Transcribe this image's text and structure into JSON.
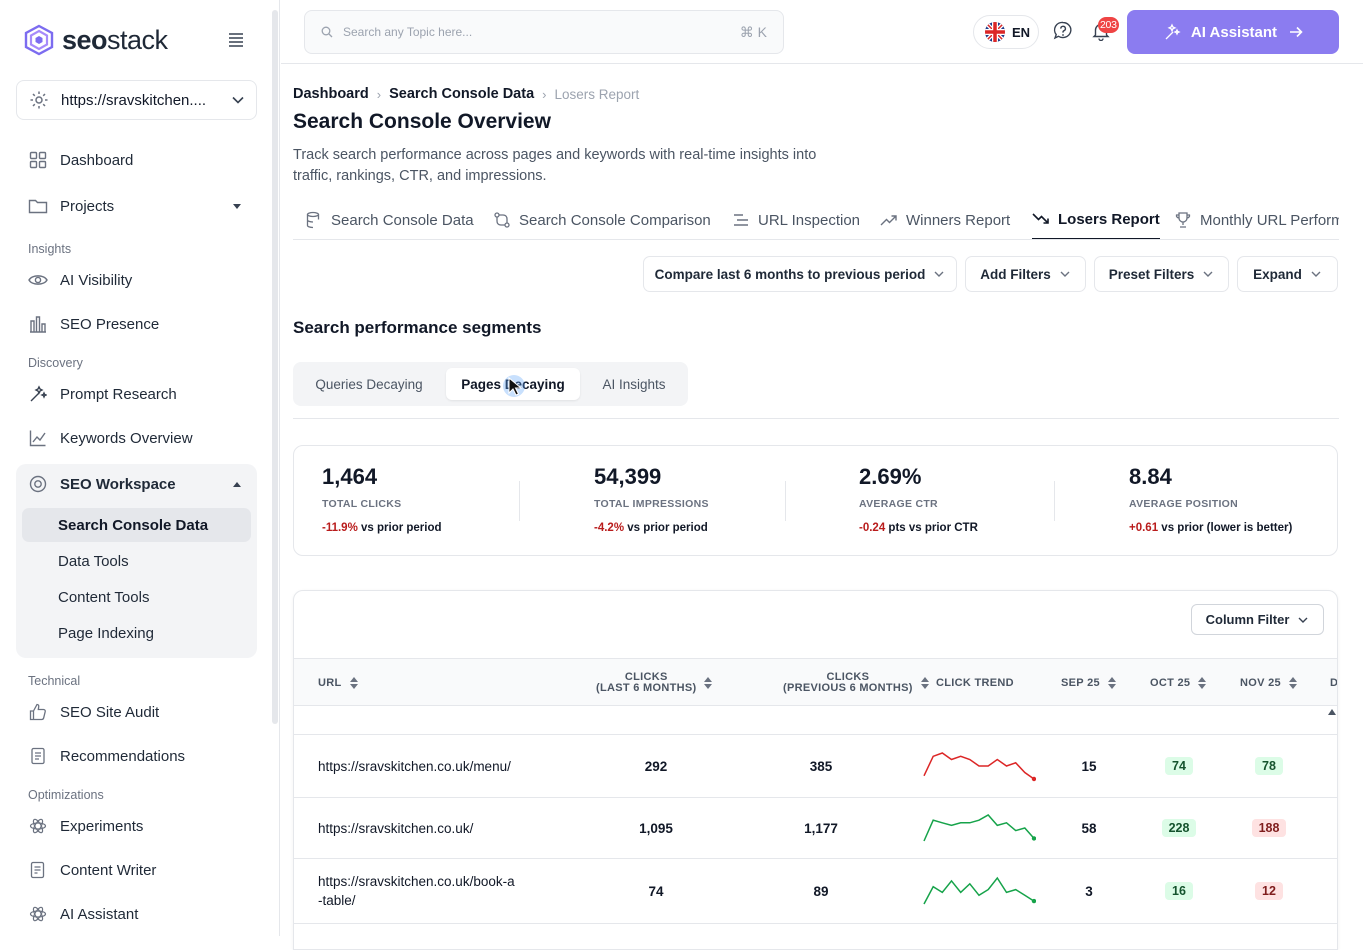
{
  "brand": {
    "name_bold": "seo",
    "name_light": "stack"
  },
  "site_selector": {
    "value": "https://sravskitchen...."
  },
  "nav": {
    "dashboard": "Dashboard",
    "projects": "Projects",
    "sec_insights": "Insights",
    "ai_visibility": "AI Visibility",
    "seo_presence": "SEO Presence",
    "sec_discovery": "Discovery",
    "prompt_research": "Prompt Research",
    "keywords_overview": "Keywords Overview",
    "seo_workspace": "SEO Workspace",
    "sub": {
      "search_console_data": "Search Console Data",
      "data_tools": "Data Tools",
      "content_tools": "Content Tools",
      "page_indexing": "Page Indexing"
    },
    "sec_technical": "Technical",
    "seo_site_audit": "SEO Site Audit",
    "recommendations": "Recommendations",
    "sec_optimizations": "Optimizations",
    "experiments": "Experiments",
    "content_writer": "Content Writer",
    "ai_assistant": "AI Assistant"
  },
  "topbar": {
    "search_placeholder": "Search any Topic here...",
    "shortcut": "⌘ K",
    "lang": "EN",
    "notif_count": "203",
    "ai_button": "AI Assistant"
  },
  "breadcrumb": [
    "Dashboard",
    "Search Console Data",
    "Losers Report"
  ],
  "page": {
    "title": "Search Console Overview",
    "description": "Track search performance across pages and keywords with real-time insights into traffic, rankings, CTR, and impressions."
  },
  "tabs": [
    "Search Console Data",
    "Search Console Comparison",
    "URL Inspection",
    "Winners Report",
    "Losers Report",
    "Monthly URL Perform"
  ],
  "controls": {
    "compare": "Compare last 6 months to previous period",
    "add_filters": "Add Filters",
    "preset_filters": "Preset Filters",
    "expand": "Expand"
  },
  "segments": {
    "title": "Search performance segments",
    "tabs": [
      "Queries Decaying",
      "Pages Decaying",
      "AI Insights"
    ],
    "active": "Pages Decaying"
  },
  "stats": [
    {
      "value": "1,464",
      "label": "TOTAL CLICKS",
      "delta": "-11.9%",
      "suffix": " vs prior period"
    },
    {
      "value": "54,399",
      "label": "TOTAL IMPRESSIONS",
      "delta": "-4.2%",
      "suffix": " vs prior period"
    },
    {
      "value": "2.69%",
      "label": "AVERAGE CTR",
      "delta": "-0.24",
      "suffix": " pts vs prior CTR"
    },
    {
      "value": "8.84",
      "label": "AVERAGE POSITION",
      "delta": "+0.61",
      "suffix": " vs prior (lower is better)"
    }
  ],
  "table": {
    "column_filter": "Column Filter",
    "headers": {
      "url": "URL",
      "clicks_last_1": "CLICKS",
      "clicks_last_2": "(LAST 6 MONTHS)",
      "clicks_prev_1": "CLICKS",
      "clicks_prev_2": "(PREVIOUS 6 MONTHS)",
      "trend": "CLICK TREND",
      "sep": "SEP 25",
      "oct": "OCT 25",
      "nov": "NOV 25",
      "dec": "D"
    },
    "rows": [
      {
        "url": "https://sravskitchen.co.uk/menu/",
        "clicks_last": "292",
        "clicks_prev": "385",
        "sep": "15",
        "oct": "74",
        "nov": "78",
        "oct_tone": "g",
        "nov_tone": "g",
        "trend_color": "#dc2626",
        "trend": [
          5,
          11,
          12,
          10,
          11,
          10,
          8,
          8,
          10,
          8,
          9,
          6,
          4
        ]
      },
      {
        "url": "https://sravskitchen.co.uk/",
        "clicks_last": "1,095",
        "clicks_prev": "1,177",
        "sep": "58",
        "oct": "228",
        "nov": "188",
        "oct_tone": "g",
        "nov_tone": "r",
        "trend_color": "#16a34a",
        "trend": [
          3,
          11,
          10,
          9,
          10,
          10,
          11,
          13,
          9,
          10,
          7,
          8,
          4
        ]
      },
      {
        "url": "https://sravskitchen.co.uk/book-a-table/",
        "clicks_last": "74",
        "clicks_prev": "89",
        "sep": "3",
        "oct": "16",
        "nov": "12",
        "oct_tone": "g",
        "nov_tone": "r",
        "trend_color": "#16a34a",
        "trend": [
          4,
          10,
          8,
          12,
          8,
          11,
          7,
          9,
          13,
          8,
          9,
          7,
          5
        ]
      }
    ]
  }
}
